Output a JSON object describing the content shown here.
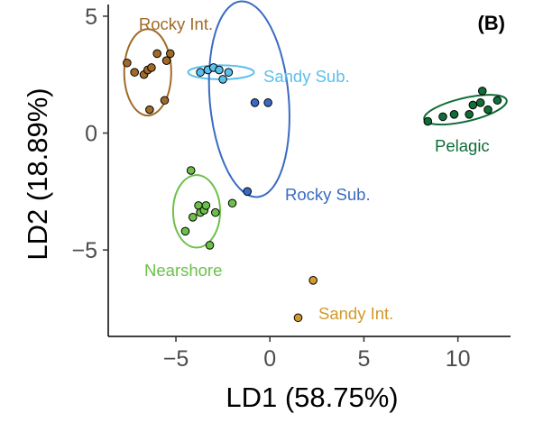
{
  "chart_data": {
    "type": "scatter",
    "panel_label": "(B)",
    "xlabel": "LD1 (58.75%)",
    "ylabel": "LD2 (18.89%)",
    "xlim": [
      -8.6,
      12.8
    ],
    "ylim": [
      -8.7,
      5.5
    ],
    "xticks": [
      -5,
      0,
      5,
      10
    ],
    "yticks": [
      -5,
      0,
      5
    ],
    "xtick_labels": [
      "−5",
      "0",
      "5",
      "10"
    ],
    "ytick_labels": [
      "−5",
      "0",
      "5"
    ],
    "grid": false,
    "groups": [
      {
        "name": "Rocky Int.",
        "color": "#a06a28",
        "points": [
          [
            -7.6,
            3.0
          ],
          [
            -7.2,
            2.6
          ],
          [
            -6.7,
            2.5
          ],
          [
            -6.5,
            2.7
          ],
          [
            -6.3,
            2.8
          ],
          [
            -6.0,
            3.4
          ],
          [
            -5.5,
            3.1
          ],
          [
            -5.3,
            3.4
          ],
          [
            -6.4,
            1.0
          ],
          [
            -5.6,
            1.4
          ]
        ],
        "ellipse": {
          "cx": -6.5,
          "cy": 2.6,
          "rx": 1.25,
          "ry": 1.85,
          "angle_deg": 0
        }
      },
      {
        "name": "Sandy Sub.",
        "color": "#5bc0ec",
        "points": [
          [
            -3.7,
            2.6
          ],
          [
            -3.3,
            2.7
          ],
          [
            -3.0,
            2.8
          ],
          [
            -2.7,
            2.7
          ],
          [
            -2.5,
            2.3
          ],
          [
            -2.2,
            2.6
          ]
        ],
        "ellipse": {
          "cx": -2.6,
          "cy": 2.6,
          "rx": 1.75,
          "ry": 0.3,
          "angle_deg": 0
        }
      },
      {
        "name": "Rocky Sub.",
        "color": "#3a6bc2",
        "points": [
          [
            -0.8,
            1.3
          ],
          [
            -0.1,
            1.3
          ],
          [
            -1.2,
            -2.5
          ]
        ],
        "ellipse": {
          "cx": -1.1,
          "cy": 1.45,
          "rx": 2.1,
          "ry": 4.2,
          "angle_deg": -5
        }
      },
      {
        "name": "Pelagic",
        "color": "#0f6d36",
        "points": [
          [
            8.4,
            0.5
          ],
          [
            9.2,
            0.7
          ],
          [
            9.8,
            0.8
          ],
          [
            10.6,
            0.8
          ],
          [
            10.8,
            1.2
          ],
          [
            11.2,
            1.3
          ],
          [
            11.3,
            1.8
          ],
          [
            11.6,
            1.0
          ],
          [
            12.1,
            1.4
          ]
        ],
        "ellipse": {
          "cx": 10.4,
          "cy": 1.0,
          "rx": 2.25,
          "ry": 0.5,
          "angle_deg": -13
        }
      },
      {
        "name": "Nearshore",
        "color": "#6cc04a",
        "points": [
          [
            -4.5,
            -4.2
          ],
          [
            -4.2,
            -1.6
          ],
          [
            -4.1,
            -3.6
          ],
          [
            -3.8,
            -3.1
          ],
          [
            -3.7,
            -3.4
          ],
          [
            -3.5,
            -3.3
          ],
          [
            -3.4,
            -3.1
          ],
          [
            -3.2,
            -4.8
          ],
          [
            -2.9,
            -3.4
          ],
          [
            -2.0,
            -3.0
          ]
        ],
        "ellipse": {
          "cx": -3.9,
          "cy": -3.35,
          "rx": 1.25,
          "ry": 1.55,
          "angle_deg": 0
        }
      },
      {
        "name": "Sandy Int.",
        "color": "#d29a2c",
        "points": [
          [
            2.3,
            -6.3
          ],
          [
            1.5,
            -7.9
          ]
        ],
        "ellipse": null
      }
    ]
  }
}
